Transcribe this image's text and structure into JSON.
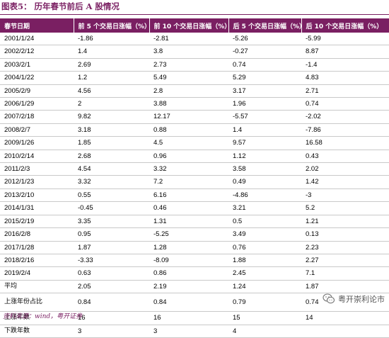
{
  "title": "图表5：  历年春节前后 A 股情况",
  "columns": [
    "春节日期",
    "前 5 个交易日涨幅（%）",
    "前 10 个交易日涨幅（%）",
    "后 5 个交易日涨幅（%）",
    "后 10 个交易日涨幅（%）"
  ],
  "rows": [
    [
      "2001/1/24",
      "-1.86",
      "-2.81",
      "-5.26",
      "-5.99"
    ],
    [
      "2002/2/12",
      "1.4",
      "3.8",
      "-0.27",
      "8.87"
    ],
    [
      "2003/2/1",
      "2.69",
      "2.73",
      "0.74",
      "-1.4"
    ],
    [
      "2004/1/22",
      "1.2",
      "5.49",
      "5.29",
      "4.83"
    ],
    [
      "2005/2/9",
      "4.56",
      "2.8",
      "3.17",
      "2.71"
    ],
    [
      "2006/1/29",
      "2",
      "3.88",
      "1.96",
      "0.74"
    ],
    [
      "2007/2/18",
      "9.82",
      "12.17",
      "-5.57",
      "-2.02"
    ],
    [
      "2008/2/7",
      "3.18",
      "0.88",
      "1.4",
      "-7.86"
    ],
    [
      "2009/1/26",
      "1.85",
      "4.5",
      "9.57",
      "16.58"
    ],
    [
      "2010/2/14",
      "2.68",
      "0.96",
      "1.12",
      "0.43"
    ],
    [
      "2011/2/3",
      "4.54",
      "3.32",
      "3.58",
      "2.02"
    ],
    [
      "2012/1/23",
      "3.32",
      "7.2",
      "0.49",
      "1.42"
    ],
    [
      "2013/2/10",
      "0.55",
      "6.16",
      "-4.86",
      "-3"
    ],
    [
      "2014/1/31",
      "-0.45",
      "0.46",
      "3.21",
      "5.2"
    ],
    [
      "2015/2/19",
      "3.35",
      "1.31",
      "0.5",
      "1.21"
    ],
    [
      "2016/2/8",
      "0.95",
      "-5.25",
      "3.49",
      "0.13"
    ],
    [
      "2017/1/28",
      "1.87",
      "1.28",
      "0.76",
      "2.23"
    ],
    [
      "2018/2/16",
      "-3.33",
      "-8.09",
      "1.88",
      "2.27"
    ],
    [
      "2019/2/4",
      "0.63",
      "0.86",
      "2.45",
      "7.1"
    ]
  ],
  "summary": [
    [
      "平均",
      "2.05",
      "2.19",
      "1.24",
      "1.87"
    ],
    [
      "上涨年份占比",
      "0.84",
      "0.84",
      "0.79",
      "0.74"
    ],
    [
      "上涨年数",
      "16",
      "16",
      "15",
      "14"
    ],
    [
      "下跌年数",
      "3",
      "3",
      "4",
      ""
    ]
  ],
  "source": "资料来源：wind，粤开证券",
  "watermark": "粤开崇利论市",
  "colors": {
    "accent": "#7a1f62",
    "rule": "#c9c9c9"
  },
  "icons": {
    "watermark": "wechat-icon"
  }
}
